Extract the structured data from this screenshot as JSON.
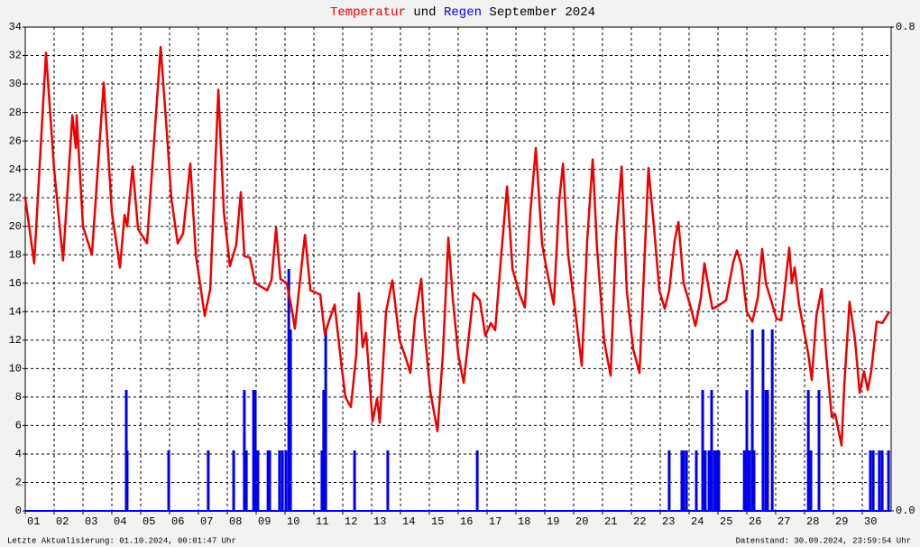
{
  "chart_data": {
    "type": "line-bar",
    "title_join": "und",
    "title_rest": "September 2024",
    "footer_left": "Letzte Aktualisierung: 01.10.2024, 00:01:47 Uhr",
    "footer_right": "Datenstand: 30.09.2024, 23:59:54 Uhr",
    "xlim": [
      1,
      31
    ],
    "xticks": [
      {
        "value": 1,
        "label": "01"
      },
      {
        "value": 2,
        "label": "02"
      },
      {
        "value": 3,
        "label": "03"
      },
      {
        "value": 4,
        "label": "04"
      },
      {
        "value": 5,
        "label": "05"
      },
      {
        "value": 6,
        "label": "06"
      },
      {
        "value": 7,
        "label": "07"
      },
      {
        "value": 8,
        "label": "08"
      },
      {
        "value": 9,
        "label": "09"
      },
      {
        "value": 10,
        "label": "10"
      },
      {
        "value": 11,
        "label": "11"
      },
      {
        "value": 12,
        "label": "12"
      },
      {
        "value": 13,
        "label": "13"
      },
      {
        "value": 14,
        "label": "14"
      },
      {
        "value": 15,
        "label": "15"
      },
      {
        "value": 16,
        "label": "16"
      },
      {
        "value": 17,
        "label": "17"
      },
      {
        "value": 18,
        "label": "18"
      },
      {
        "value": 19,
        "label": "19"
      },
      {
        "value": 20,
        "label": "20"
      },
      {
        "value": 21,
        "label": "21"
      },
      {
        "value": 22,
        "label": "22"
      },
      {
        "value": 23,
        "label": "23"
      },
      {
        "value": 24,
        "label": "24"
      },
      {
        "value": 25,
        "label": "25"
      },
      {
        "value": 26,
        "label": "26"
      },
      {
        "value": 27,
        "label": "27"
      },
      {
        "value": 28,
        "label": "28"
      },
      {
        "value": 29,
        "label": "29"
      },
      {
        "value": 30,
        "label": "30"
      }
    ],
    "ylim": [
      0,
      34
    ],
    "yticks": [
      0,
      2,
      4,
      6,
      8,
      10,
      12,
      14,
      16,
      18,
      20,
      22,
      24,
      26,
      28,
      30,
      32,
      34
    ],
    "y2lim": [
      0,
      0.8
    ],
    "y2ticks": [
      {
        "value": 0,
        "label": "0.0"
      },
      {
        "value": 0.8,
        "label": "0.8"
      }
    ],
    "grid": true,
    "series": [
      {
        "name": "Temperatur",
        "kind": "line",
        "color": "#ee0000",
        "x": [
          1.0,
          1.31,
          1.72,
          2.0,
          2.31,
          2.63,
          2.75,
          2.78,
          3.0,
          3.31,
          3.72,
          4.0,
          4.28,
          4.44,
          4.53,
          4.72,
          4.91,
          5.22,
          5.69,
          5.91,
          6.06,
          6.28,
          6.47,
          6.72,
          6.91,
          7.22,
          7.41,
          7.69,
          7.88,
          8.09,
          8.31,
          8.47,
          8.59,
          8.78,
          8.97,
          9.38,
          9.53,
          9.69,
          9.84,
          10.06,
          10.25,
          10.34,
          10.69,
          10.88,
          11.22,
          11.38,
          11.5,
          11.72,
          11.94,
          12.09,
          12.28,
          12.47,
          12.56,
          12.69,
          12.81,
          13.03,
          13.19,
          13.28,
          13.5,
          13.72,
          13.97,
          14.19,
          14.34,
          14.5,
          14.72,
          14.84,
          15.03,
          15.28,
          15.47,
          15.66,
          15.81,
          16.0,
          16.19,
          16.53,
          16.75,
          16.94,
          17.13,
          17.28,
          17.5,
          17.69,
          17.88,
          18.13,
          18.31,
          18.5,
          18.69,
          18.91,
          19.09,
          19.31,
          19.5,
          19.63,
          19.81,
          20.06,
          20.28,
          20.47,
          20.66,
          20.81,
          21.06,
          21.28,
          21.47,
          21.66,
          21.84,
          22.06,
          22.28,
          22.44,
          22.59,
          22.78,
          22.97,
          23.16,
          23.31,
          23.5,
          23.63,
          23.81,
          24.03,
          24.22,
          24.41,
          24.53,
          24.69,
          24.81,
          25.0,
          25.28,
          25.53,
          25.66,
          25.81,
          26.0,
          26.19,
          26.38,
          26.53,
          26.66,
          26.84,
          27.03,
          27.19,
          27.31,
          27.47,
          27.56,
          27.66,
          27.81,
          27.97,
          28.13,
          28.25,
          28.41,
          28.59,
          28.75,
          28.94,
          29.06,
          29.28,
          29.38,
          29.56,
          29.75,
          29.91,
          30.06,
          30.19,
          30.31,
          30.5,
          30.69,
          30.94
        ],
        "values": [
          22,
          17.4,
          32.2,
          24,
          17.6,
          27.8,
          25.5,
          27.8,
          20,
          18,
          30.1,
          21,
          17.1,
          20.8,
          20,
          24.2,
          19.8,
          18.8,
          32.6,
          26.5,
          22,
          18.8,
          19.5,
          24.4,
          18,
          13.7,
          15.6,
          29.6,
          21,
          17.2,
          18.7,
          22.4,
          17.9,
          17.8,
          16,
          15.5,
          16.2,
          19.9,
          16.3,
          16,
          14,
          12.8,
          19.4,
          15.5,
          15.2,
          12.4,
          13.2,
          14.5,
          10.5,
          8,
          7.3,
          11,
          15.3,
          11.5,
          12.5,
          6.3,
          7.9,
          6.2,
          14,
          16.2,
          12,
          10.7,
          9.7,
          13.5,
          16.3,
          12.5,
          8.4,
          5.6,
          11,
          19.2,
          15,
          11,
          9,
          15.3,
          14.8,
          12.3,
          13.2,
          12.7,
          18.2,
          22.8,
          17,
          15.2,
          14.3,
          21,
          25.5,
          18.7,
          16.7,
          14.5,
          21.8,
          24.4,
          18,
          14,
          10.2,
          19,
          24.7,
          18.5,
          11.9,
          9.5,
          19.2,
          24.2,
          15.5,
          11.4,
          9.7,
          17,
          24.1,
          20,
          15.5,
          14.2,
          15.5,
          19,
          20.3,
          16,
          14.5,
          13,
          15,
          17.4,
          15.5,
          14.2,
          14.4,
          14.8,
          17.5,
          18.3,
          17.3,
          14,
          13.3,
          15,
          18.4,
          16,
          14.8,
          13.5,
          13.4,
          15.5,
          18.5,
          16,
          17.1,
          14.5,
          12.8,
          11,
          9.2,
          13.7,
          15.6,
          11,
          6.6,
          6.8,
          4.6,
          9,
          14.7,
          12,
          8.3,
          9.8,
          8.5,
          9.8,
          13.3,
          13.2,
          14
        ]
      },
      {
        "name": "Regen",
        "kind": "bar",
        "axis": "y2",
        "color": "#0000ee",
        "x": [
          4.5,
          4.53,
          5.97,
          7.34,
          8.22,
          8.59,
          8.66,
          8.91,
          8.97,
          9.06,
          9.41,
          9.47,
          9.81,
          9.91,
          10.03,
          10.13,
          10.19,
          11.28,
          11.34,
          11.41,
          12.41,
          13.56,
          16.66,
          23.31,
          23.75,
          23.81,
          23.91,
          24.25,
          24.47,
          24.56,
          24.69,
          24.78,
          24.88,
          24.97,
          25.03,
          25.91,
          26.0,
          26.09,
          26.19,
          26.25,
          26.56,
          26.66,
          26.72,
          26.88,
          28.13,
          28.22,
          28.5,
          30.28,
          30.38,
          30.59,
          30.69,
          30.91
        ],
        "values": [
          0.2,
          0.1,
          0.1,
          0.1,
          0.1,
          0.2,
          0.1,
          0.2,
          0.2,
          0.1,
          0.1,
          0.1,
          0.1,
          0.1,
          0.1,
          0.4,
          0.3,
          0.1,
          0.2,
          0.3,
          0.1,
          0.1,
          0.1,
          0.1,
          0.1,
          0.1,
          0.1,
          0.1,
          0.2,
          0.1,
          0.1,
          0.2,
          0.1,
          0.1,
          0.1,
          0.1,
          0.2,
          0.1,
          0.3,
          0.1,
          0.3,
          0.2,
          0.2,
          0.3,
          0.2,
          0.1,
          0.2,
          0.1,
          0.1,
          0.1,
          0.1,
          0.1
        ]
      }
    ]
  }
}
